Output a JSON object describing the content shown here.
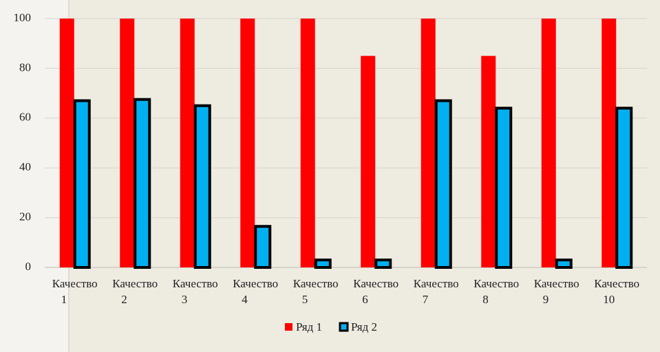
{
  "chart_data": {
    "type": "bar",
    "categories": [
      "Качество 1",
      "Качество 2",
      "Качество 3",
      "Качество 4",
      "Качество 5",
      "Качество 6",
      "Качество 7",
      "Качество 8",
      "Качество 9",
      "Качество 10"
    ],
    "series": [
      {
        "name": "Ряд 1",
        "color": "#ff0000",
        "values": [
          100,
          100,
          100,
          100,
          100,
          85,
          100,
          85,
          100,
          100
        ]
      },
      {
        "name": "Ряд 2",
        "color": "#00b0f0",
        "values": [
          67,
          67.5,
          65,
          16.5,
          3,
          3,
          67,
          64,
          3,
          64
        ]
      }
    ],
    "ylim": [
      0,
      100
    ],
    "yticks": [
      0,
      20,
      40,
      60,
      80,
      100
    ],
    "grid": true,
    "legend": "bottom"
  }
}
